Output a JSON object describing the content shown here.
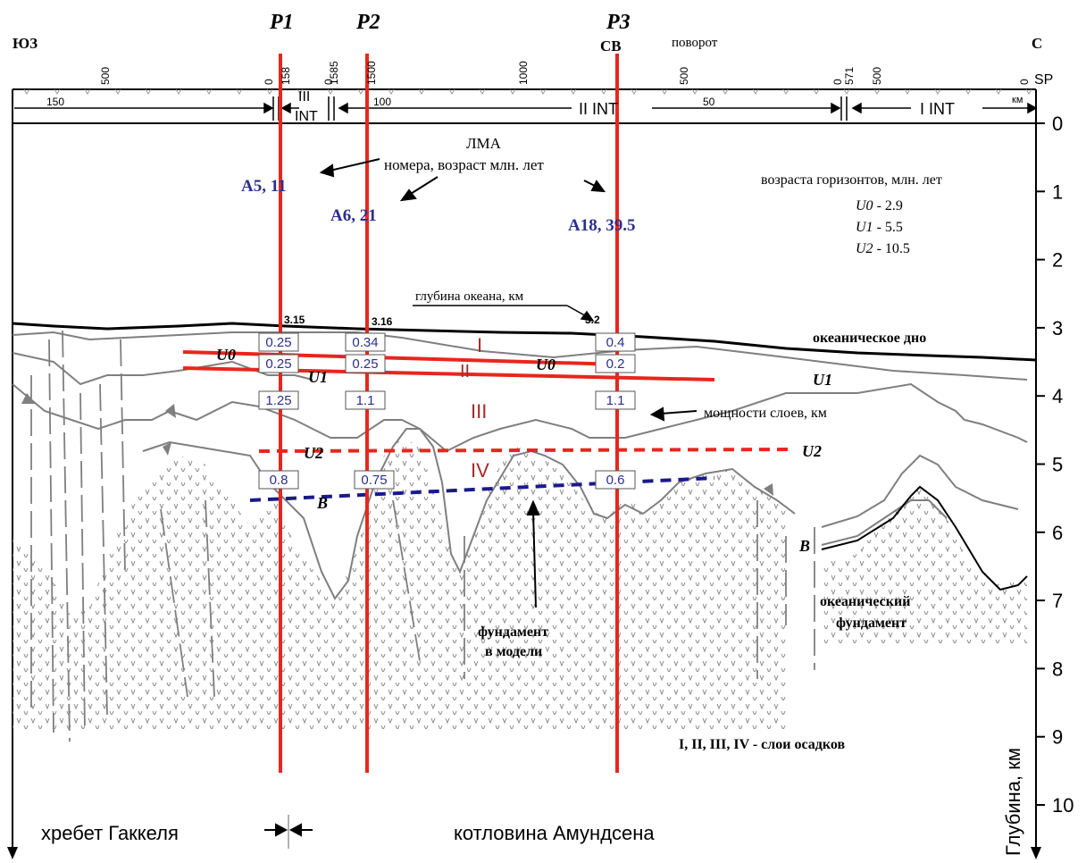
{
  "corners": {
    "sw": "ЮЗ",
    "ne": "СВ",
    "n": "С",
    "turn": "поворот",
    "sp": "SP"
  },
  "profiles": [
    {
      "name": "P1",
      "age_label": "A5,  11",
      "depth": "3.15",
      "thickness": [
        "0.25",
        "0.25",
        "1.25",
        "0.8"
      ]
    },
    {
      "name": "P2",
      "age_label": "A6,  21",
      "depth": "3.16",
      "thickness": [
        "0.34",
        "0.25",
        "1.1",
        "0.75"
      ]
    },
    {
      "name": "P3",
      "age_label": "A18,  39.5",
      "depth": "3.2",
      "thickness": [
        "0.4",
        "0.2",
        "1.1",
        "0.6"
      ]
    }
  ],
  "sp_ticks": [
    "500",
    "0",
    "158",
    "0",
    "1585",
    "1500",
    "1000",
    "500",
    "0",
    "571",
    "500",
    "0"
  ],
  "km_ticks": [
    "150",
    "100",
    "50",
    "км"
  ],
  "intervals": [
    "III",
    "INT",
    "II  INT",
    "I  INT"
  ],
  "depth_axis": {
    "ticks": [
      "0",
      "1",
      "2",
      "3",
      "4",
      "5",
      "6",
      "7",
      "8",
      "9",
      "10"
    ],
    "label": "Глубина, км"
  },
  "annotations": {
    "lma": "ЛМА",
    "lma_desc": "номера, возраст млн. лет",
    "horizons_title": "возраста горизонтов, млн. лет",
    "horizons": [
      {
        "name": "U0",
        "age": " - 2.9"
      },
      {
        "name": "U1",
        "age": " - 5.5"
      },
      {
        "name": "U2",
        "age": " - 10.5"
      }
    ],
    "ocean_depth": "глубина океана, км",
    "seafloor": "океаническое дно",
    "thickness_label": "мощности слоев, км",
    "basement_model": [
      "фундамент",
      "в модели"
    ],
    "oceanic_basement": [
      "океанический",
      "фундамент"
    ],
    "layers_legend": "I, II, III, IV - слои осадков"
  },
  "layers": [
    "I",
    "II",
    "III",
    "IV"
  ],
  "horizon_labels": [
    "U0",
    "U1",
    "U0",
    "U1",
    "U2",
    "U2",
    "B",
    "B"
  ],
  "regions": {
    "left": "хребет Гаккеля",
    "right": "котловина Амундсена"
  },
  "colors": {
    "profile": "#e8261d",
    "text_blue": "#2b2f8c",
    "layer_red": "#a52a2a",
    "gray": "#808080",
    "dashed_blue": "#1a1a8c"
  }
}
